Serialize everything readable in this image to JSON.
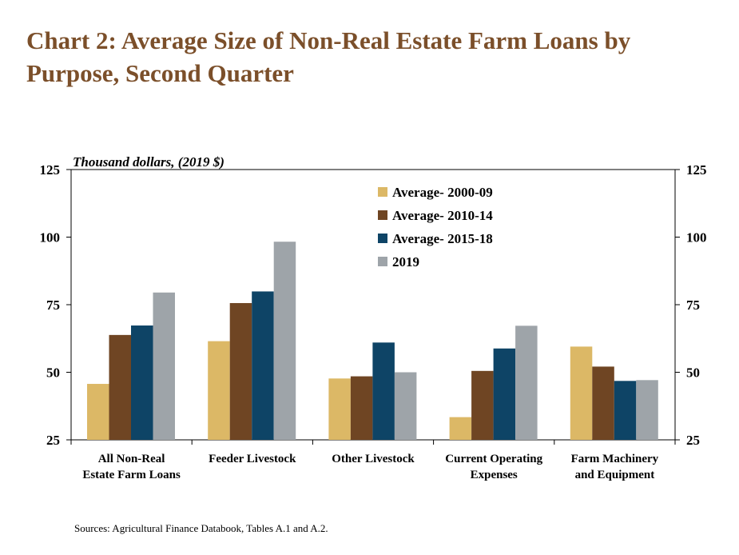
{
  "title": "Chart 2: Average Size of Non-Real Estate Farm Loans by Purpose, Second Quarter",
  "source": "Sources: Agricultural Finance Databook, Tables A.1 and A.2.",
  "chart_data": {
    "type": "bar",
    "title": "Chart 2: Average Size of Non-Real Estate Farm Loans by Purpose, Second Quarter",
    "unit_label": "Thousand dollars, (2019 $)",
    "categories": [
      [
        "All Non-Real",
        "Estate Farm Loans"
      ],
      [
        "Feeder Livestock"
      ],
      [
        "Other Livestock"
      ],
      [
        "Current Operating",
        "Expenses"
      ],
      [
        "Farm Machinery",
        "and Equipment"
      ]
    ],
    "series": [
      {
        "name": "Average- 2000-09",
        "color": "#dcb866",
        "values": [
          45.7,
          61.5,
          47.7,
          33.4,
          59.5
        ]
      },
      {
        "name": "Average- 2010-14",
        "color": "#6f4523",
        "values": [
          63.8,
          75.6,
          48.5,
          50.5,
          52.1
        ]
      },
      {
        "name": "Average- 2015-18",
        "color": "#0e4466",
        "values": [
          67.3,
          79.9,
          61.0,
          58.8,
          46.8
        ]
      },
      {
        "name": "2019",
        "color": "#9ea4a9",
        "values": [
          79.5,
          98.3,
          50.0,
          67.2,
          47.1
        ]
      }
    ],
    "ylim": [
      25,
      125
    ],
    "yticks": [
      25,
      50,
      75,
      100,
      125
    ],
    "right_axis": true,
    "grid": false,
    "legend_position": "top-center"
  }
}
